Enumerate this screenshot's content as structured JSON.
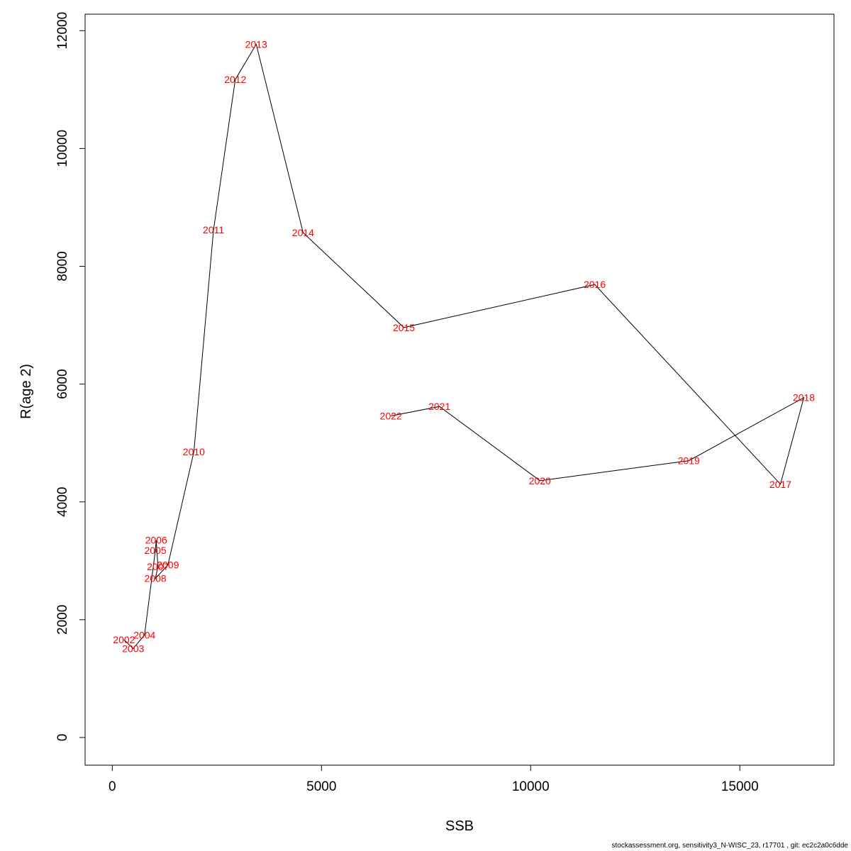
{
  "chart_data": {
    "type": "line",
    "xlabel": "SSB",
    "ylabel": "R(age 2)",
    "xlim": [
      -650,
      17250
    ],
    "ylim": [
      -470,
      12280
    ],
    "x_ticks": [
      0,
      5000,
      10000,
      15000
    ],
    "y_ticks": [
      0,
      2000,
      4000,
      6000,
      8000,
      10000,
      12000
    ],
    "grid": false,
    "legend": "none",
    "line_color": "#000000",
    "label_color": "#ff0000",
    "points": [
      {
        "label": "2002",
        "x": 280,
        "y": 1660
      },
      {
        "label": "2003",
        "x": 500,
        "y": 1510
      },
      {
        "label": "2004",
        "x": 770,
        "y": 1740
      },
      {
        "label": "2005",
        "x": 1030,
        "y": 3180
      },
      {
        "label": "2006",
        "x": 1050,
        "y": 3350
      },
      {
        "label": "2007",
        "x": 1090,
        "y": 2900
      },
      {
        "label": "2008",
        "x": 1030,
        "y": 2700
      },
      {
        "label": "2009",
        "x": 1330,
        "y": 2930
      },
      {
        "label": "2010",
        "x": 1950,
        "y": 4850
      },
      {
        "label": "2011",
        "x": 2420,
        "y": 8620
      },
      {
        "label": "2012",
        "x": 2940,
        "y": 11170
      },
      {
        "label": "2013",
        "x": 3440,
        "y": 11770
      },
      {
        "label": "2014",
        "x": 4560,
        "y": 8570
      },
      {
        "label": "2015",
        "x": 6970,
        "y": 6960
      },
      {
        "label": "2016",
        "x": 11530,
        "y": 7690
      },
      {
        "label": "2017",
        "x": 15970,
        "y": 4300
      },
      {
        "label": "2018",
        "x": 16530,
        "y": 5770
      },
      {
        "label": "2019",
        "x": 13780,
        "y": 4700
      },
      {
        "label": "2020",
        "x": 10220,
        "y": 4360
      },
      {
        "label": "2021",
        "x": 7820,
        "y": 5620
      },
      {
        "label": "2022",
        "x": 6660,
        "y": 5460
      }
    ]
  },
  "footer": "stockassessment.org, sensitivity3_N-WISC_23, r17701 , git: ec2c2a0c6dde"
}
